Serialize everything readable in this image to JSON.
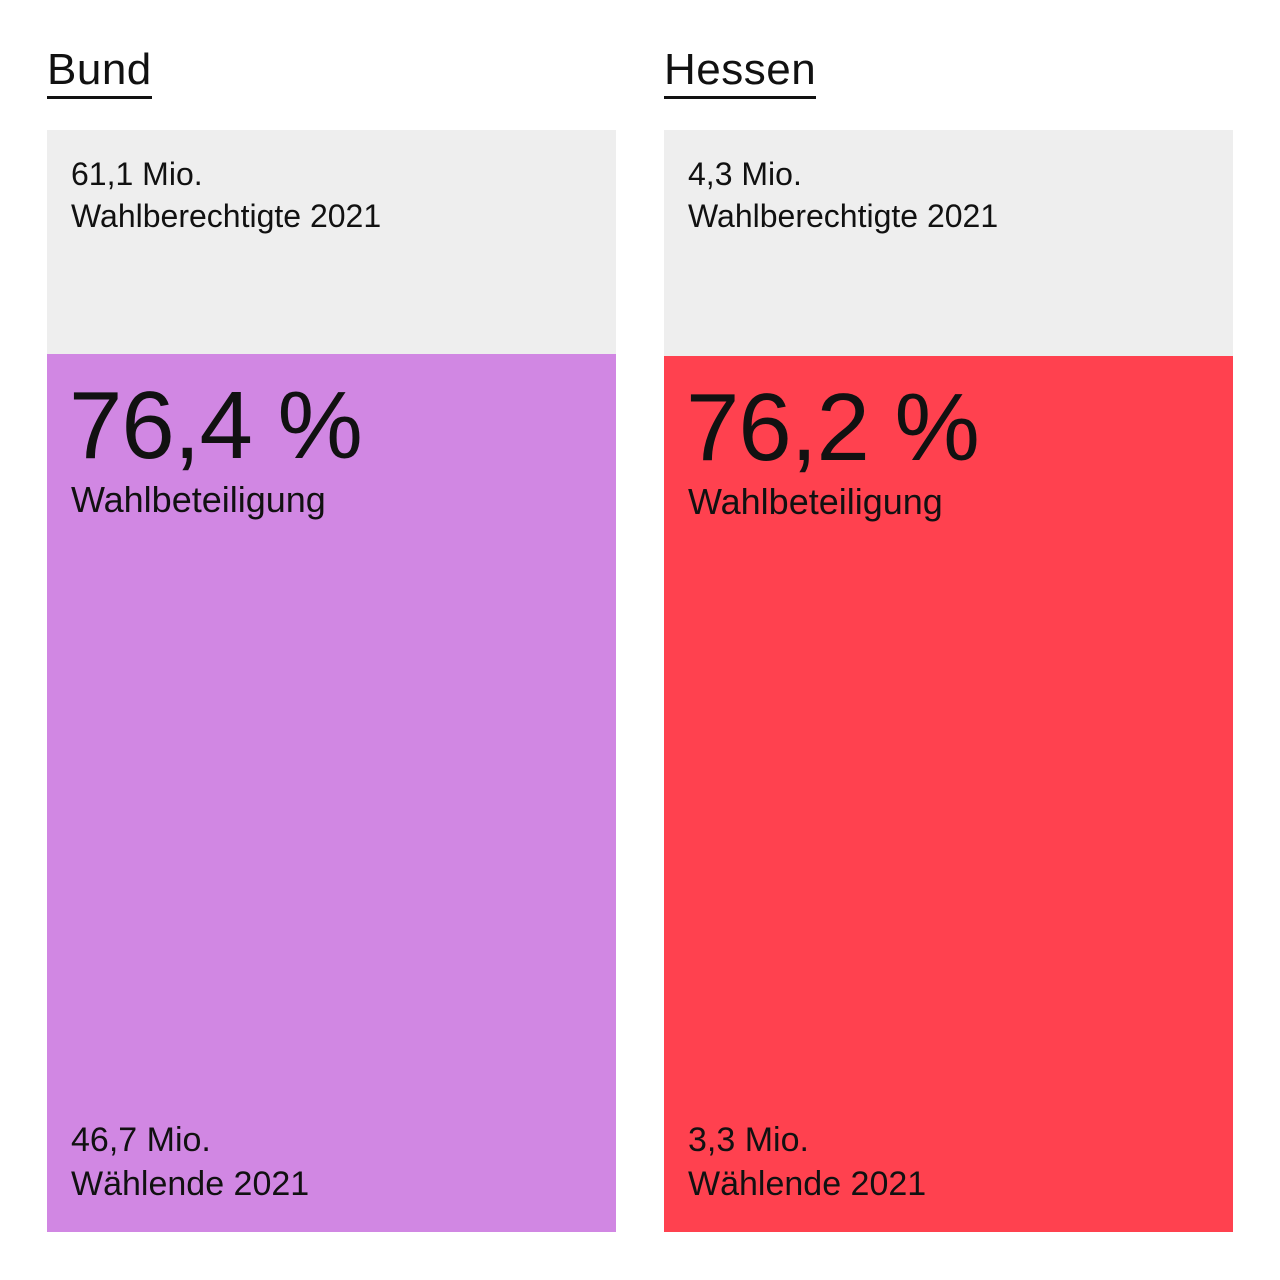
{
  "chart_data": {
    "type": "bar",
    "categories": [
      "Bund",
      "Hessen"
    ],
    "bars": [
      {
        "region": "Bund",
        "eligible_value": "61,1 Mio.",
        "eligible_label": "Wahlberechtigte 2021",
        "turnout_value": "76,4 %",
        "turnout_label": "Wahlbeteiligung",
        "voters_value": "46,7 Mio.",
        "voters_label": "Wählende 2021",
        "turnout_fraction": 0.764,
        "color": "#d187e3"
      },
      {
        "region": "Hessen",
        "eligible_value": "4,3 Mio.",
        "eligible_label": "Wahlberechtigte 2021",
        "turnout_value": "76,2 %",
        "turnout_label": "Wahlbeteiligung",
        "voters_value": "3,3 Mio.",
        "voters_label": "Wählende 2021",
        "turnout_fraction": 0.762,
        "color": "#ff414f"
      }
    ],
    "values": [
      76.4,
      76.2
    ],
    "unit": "%",
    "background_color": "#eeeeee"
  }
}
